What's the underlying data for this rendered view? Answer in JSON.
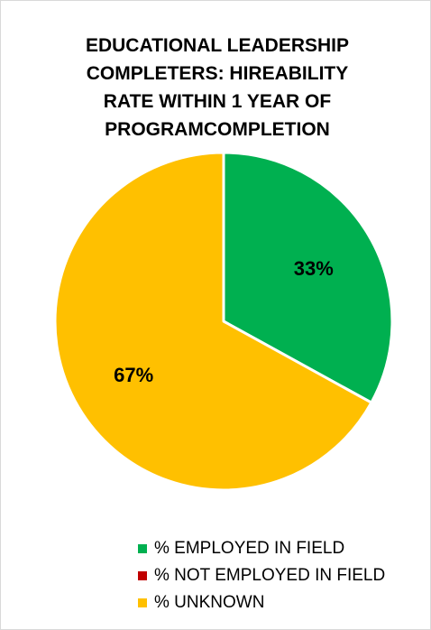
{
  "chart_data": {
    "type": "pie",
    "title_lines": [
      "EDUCATIONAL LEADERSHIP",
      "COMPLETERS: HIREABILITY",
      "RATE WITHIN 1 YEAR OF",
      "PROGRAMCOMPLETION"
    ],
    "slices": [
      {
        "label": "% EMPLOYED IN FIELD",
        "value": 33,
        "display": "33%",
        "color": "#00b050"
      },
      {
        "label": "% NOT EMPLOYED IN FIELD",
        "value": 0,
        "display": "",
        "color": "#c00000"
      },
      {
        "label": "% UNKNOWN",
        "value": 67,
        "display": "67%",
        "color": "#ffc000"
      }
    ],
    "legend_position": "bottom"
  }
}
